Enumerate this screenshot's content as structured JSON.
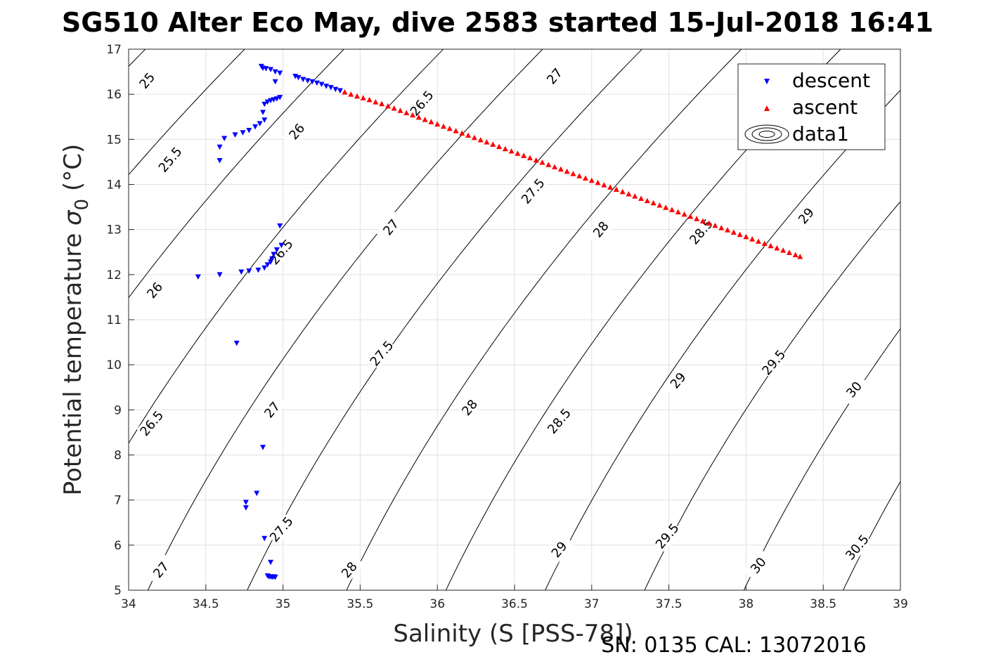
{
  "title": "SG510 Alter Eco May, dive 2583 started 15-Jul-2018 16:41",
  "footer_text": "SN: 0135  CAL: 13072016",
  "chart_data": {
    "type": "scatter",
    "title": "SG510 Alter Eco May, dive 2583 started 15-Jul-2018 16:41",
    "xlabel": "Salinity (S [PSS-78])",
    "ylabel_main": "Potential temperature ",
    "ylabel_sigma": "σ",
    "ylabel_sub": "0",
    "ylabel_unit": " (°C)",
    "xlim": [
      34,
      39
    ],
    "ylim": [
      5,
      17
    ],
    "x_ticks": [
      "34",
      "34.5",
      "35",
      "35.5",
      "36",
      "36.5",
      "37",
      "37.5",
      "38",
      "38.5",
      "39"
    ],
    "y_ticks": [
      "5",
      "6",
      "7",
      "8",
      "9",
      "10",
      "11",
      "12",
      "13",
      "14",
      "15",
      "16",
      "17"
    ],
    "grid": true,
    "legend_position": "top-right",
    "legend": [
      "descent",
      "ascent",
      "data1"
    ],
    "colors": {
      "descent": "#0000ff",
      "ascent": "#ff0000",
      "contour": "#000000",
      "grid": "#e0e0e0"
    },
    "series": [
      {
        "name": "descent",
        "marker": "triangle-down",
        "points": [
          [
            34.86,
            16.62
          ],
          [
            34.87,
            16.58
          ],
          [
            34.89,
            16.57
          ],
          [
            34.92,
            16.55
          ],
          [
            34.95,
            16.5
          ],
          [
            34.98,
            16.47
          ],
          [
            35.08,
            16.4
          ],
          [
            35.1,
            16.37
          ],
          [
            35.13,
            16.33
          ],
          [
            35.16,
            16.3
          ],
          [
            35.19,
            16.28
          ],
          [
            35.22,
            16.25
          ],
          [
            35.25,
            16.22
          ],
          [
            35.28,
            16.18
          ],
          [
            35.31,
            16.15
          ],
          [
            35.34,
            16.11
          ],
          [
            35.37,
            16.08
          ],
          [
            34.95,
            16.28
          ],
          [
            34.98,
            15.93
          ],
          [
            34.96,
            15.9
          ],
          [
            34.94,
            15.88
          ],
          [
            34.92,
            15.86
          ],
          [
            34.9,
            15.83
          ],
          [
            34.88,
            15.78
          ],
          [
            34.87,
            15.6
          ],
          [
            34.88,
            15.43
          ],
          [
            34.85,
            15.35
          ],
          [
            34.82,
            15.28
          ],
          [
            34.78,
            15.2
          ],
          [
            34.74,
            15.15
          ],
          [
            34.69,
            15.1
          ],
          [
            34.62,
            15.02
          ],
          [
            34.59,
            14.83
          ],
          [
            34.59,
            14.53
          ],
          [
            34.98,
            13.08
          ],
          [
            34.99,
            12.65
          ],
          [
            34.96,
            12.55
          ],
          [
            34.94,
            12.45
          ],
          [
            34.93,
            12.35
          ],
          [
            34.92,
            12.28
          ],
          [
            34.9,
            12.22
          ],
          [
            34.88,
            12.15
          ],
          [
            34.84,
            12.1
          ],
          [
            34.78,
            12.08
          ],
          [
            34.73,
            12.06
          ],
          [
            34.59,
            12.0
          ],
          [
            34.45,
            11.95
          ],
          [
            34.7,
            10.48
          ],
          [
            34.87,
            8.17
          ],
          [
            34.83,
            7.15
          ],
          [
            34.76,
            6.95
          ],
          [
            34.76,
            6.83
          ],
          [
            34.88,
            6.15
          ],
          [
            34.92,
            5.62
          ],
          [
            34.9,
            5.32
          ],
          [
            34.91,
            5.3
          ],
          [
            34.92,
            5.3
          ],
          [
            34.93,
            5.29
          ],
          [
            34.94,
            5.3
          ],
          [
            34.95,
            5.29
          ]
        ]
      },
      {
        "name": "ascent",
        "marker": "triangle-up",
        "points": [
          [
            35.4,
            16.05
          ],
          [
            35.44,
            16.0
          ],
          [
            35.48,
            15.96
          ],
          [
            35.52,
            15.92
          ],
          [
            35.56,
            15.88
          ],
          [
            35.6,
            15.83
          ],
          [
            35.64,
            15.79
          ],
          [
            35.68,
            15.74
          ],
          [
            35.72,
            15.69
          ],
          [
            35.76,
            15.64
          ],
          [
            35.8,
            15.59
          ],
          [
            35.84,
            15.54
          ],
          [
            35.88,
            15.49
          ],
          [
            35.92,
            15.44
          ],
          [
            35.96,
            15.39
          ],
          [
            36.0,
            15.34
          ],
          [
            36.04,
            15.29
          ],
          [
            36.08,
            15.24
          ],
          [
            36.12,
            15.19
          ],
          [
            36.16,
            15.14
          ],
          [
            36.2,
            15.09
          ],
          [
            36.24,
            15.04
          ],
          [
            36.28,
            14.99
          ],
          [
            36.32,
            14.94
          ],
          [
            36.36,
            14.89
          ],
          [
            36.4,
            14.84
          ],
          [
            36.44,
            14.79
          ],
          [
            36.48,
            14.74
          ],
          [
            36.52,
            14.69
          ],
          [
            36.56,
            14.64
          ],
          [
            36.6,
            14.59
          ],
          [
            36.64,
            14.54
          ],
          [
            36.68,
            14.49
          ],
          [
            36.72,
            14.44
          ],
          [
            36.76,
            14.39
          ],
          [
            36.8,
            14.34
          ],
          [
            36.84,
            14.29
          ],
          [
            36.88,
            14.24
          ],
          [
            36.92,
            14.19
          ],
          [
            36.96,
            14.14
          ],
          [
            37.0,
            14.09
          ],
          [
            37.04,
            14.04
          ],
          [
            37.08,
            13.99
          ],
          [
            37.12,
            13.94
          ],
          [
            37.16,
            13.89
          ],
          [
            37.2,
            13.84
          ],
          [
            37.24,
            13.79
          ],
          [
            37.28,
            13.74
          ],
          [
            37.32,
            13.69
          ],
          [
            37.36,
            13.64
          ],
          [
            37.4,
            13.59
          ],
          [
            37.44,
            13.54
          ],
          [
            37.48,
            13.49
          ],
          [
            37.52,
            13.44
          ],
          [
            37.56,
            13.39
          ],
          [
            37.6,
            13.34
          ],
          [
            37.64,
            13.29
          ],
          [
            37.68,
            13.24
          ],
          [
            37.72,
            13.19
          ],
          [
            37.76,
            13.14
          ],
          [
            37.8,
            13.09
          ],
          [
            37.84,
            13.04
          ],
          [
            37.88,
            12.99
          ],
          [
            37.92,
            12.94
          ],
          [
            37.96,
            12.89
          ],
          [
            38.0,
            12.84
          ],
          [
            38.04,
            12.79
          ],
          [
            38.08,
            12.74
          ],
          [
            38.12,
            12.69
          ],
          [
            38.16,
            12.64
          ],
          [
            38.2,
            12.59
          ],
          [
            38.24,
            12.54
          ],
          [
            38.28,
            12.49
          ],
          [
            38.32,
            12.44
          ],
          [
            38.35,
            12.4
          ]
        ]
      }
    ],
    "contour_levels": [
      "25",
      "25.5",
      "26",
      "26.5",
      "27",
      "27.5",
      "28",
      "28.5",
      "29",
      "29.5",
      "30",
      "30.5"
    ],
    "contour_labels": [
      {
        "text": "25",
        "x": 34.12,
        "y": 16.3
      },
      {
        "text": "25.5",
        "x": 34.27,
        "y": 14.55
      },
      {
        "text": "26",
        "x": 34.17,
        "y": 11.65
      },
      {
        "text": "26",
        "x": 35.09,
        "y": 15.17
      },
      {
        "text": "26.5",
        "x": 34.15,
        "y": 8.7
      },
      {
        "text": "26.5",
        "x": 34.99,
        "y": 12.5
      },
      {
        "text": "26.5",
        "x": 35.9,
        "y": 15.8
      },
      {
        "text": "27",
        "x": 34.21,
        "y": 5.45
      },
      {
        "text": "27",
        "x": 34.93,
        "y": 9.0
      },
      {
        "text": "27",
        "x": 35.7,
        "y": 13.05
      },
      {
        "text": "27",
        "x": 36.76,
        "y": 16.4
      },
      {
        "text": "27.5",
        "x": 34.99,
        "y": 6.35
      },
      {
        "text": "27.5",
        "x": 35.64,
        "y": 10.25
      },
      {
        "text": "27.5",
        "x": 36.62,
        "y": 13.85
      },
      {
        "text": "28",
        "x": 35.43,
        "y": 5.45
      },
      {
        "text": "28",
        "x": 36.21,
        "y": 9.05
      },
      {
        "text": "28",
        "x": 37.06,
        "y": 13.0
      },
      {
        "text": "28.5",
        "x": 36.79,
        "y": 8.75
      },
      {
        "text": "28.5",
        "x": 37.71,
        "y": 12.95
      },
      {
        "text": "29",
        "x": 36.79,
        "y": 5.9
      },
      {
        "text": "29",
        "x": 37.56,
        "y": 9.65
      },
      {
        "text": "29",
        "x": 38.39,
        "y": 13.3
      },
      {
        "text": "29.5",
        "x": 37.49,
        "y": 6.2
      },
      {
        "text": "29.5",
        "x": 38.18,
        "y": 10.05
      },
      {
        "text": "30",
        "x": 38.08,
        "y": 5.55
      },
      {
        "text": "30",
        "x": 38.7,
        "y": 9.45
      },
      {
        "text": "30.5",
        "x": 38.72,
        "y": 5.95
      }
    ]
  }
}
